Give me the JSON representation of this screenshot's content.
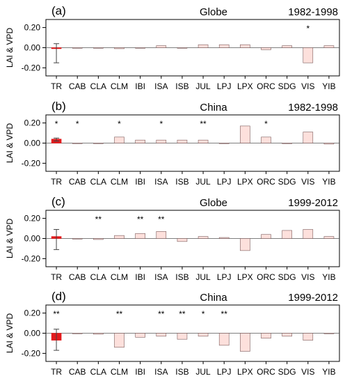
{
  "ylabel": "LAI & VPD",
  "colors": {
    "pale_bar_fill": "#fde0dc",
    "pale_bar_stroke": "#7a5a5a",
    "tr_bar_fill": "#e31a1c",
    "frame": "#000000"
  },
  "chart_data": [
    {
      "type": "bar",
      "label": "(a)",
      "region": "Globe",
      "period": "1982-1998",
      "categories": [
        "TR",
        "CAB",
        "CLA",
        "CLM",
        "IBI",
        "ISA",
        "ISB",
        "JUL",
        "LPJ",
        "LPX",
        "ORC",
        "SDG",
        "VIS",
        "YIB"
      ],
      "values": [
        -0.01,
        0.0,
        0.0,
        -0.01,
        0.0,
        0.02,
        0.0,
        0.03,
        0.03,
        0.03,
        -0.02,
        0.02,
        -0.15,
        0.02
      ],
      "tr_error": [
        -0.15,
        0.04
      ],
      "significance": [
        "",
        "",
        "",
        "",
        "",
        "",
        "",
        "",
        "",
        "",
        "",
        "",
        "*",
        ""
      ],
      "ylim": [
        -0.28,
        0.28
      ],
      "yticks": [
        -0.2,
        0.0,
        0.2
      ],
      "ytick_labels": [
        "-0.20",
        "0.00",
        "0.20"
      ]
    },
    {
      "type": "bar",
      "label": "(b)",
      "region": "China",
      "period": "1982-1998",
      "categories": [
        "TR",
        "CAB",
        "CLA",
        "CLM",
        "IBI",
        "ISA",
        "ISB",
        "JUL",
        "LPJ",
        "LPX",
        "ORC",
        "SDG",
        "VIS",
        "YIB"
      ],
      "values": [
        0.04,
        0.0,
        0.0,
        0.06,
        0.03,
        0.03,
        0.03,
        0.03,
        0.0,
        0.17,
        0.06,
        0.0,
        0.11,
        -0.01
      ],
      "tr_error": [
        0.02,
        0.05
      ],
      "significance": [
        "*",
        "*",
        "",
        "*",
        "",
        "*",
        "",
        "**",
        "",
        "",
        "*",
        "",
        "",
        ""
      ],
      "ylim": [
        -0.28,
        0.28
      ],
      "yticks": [
        -0.2,
        0.0,
        0.2
      ],
      "ytick_labels": [
        "-0.20",
        "0.00",
        "0.20"
      ]
    },
    {
      "type": "bar",
      "label": "(c)",
      "region": "Globe",
      "period": "1999-2012",
      "categories": [
        "TR",
        "CAB",
        "CLA",
        "CLM",
        "IBI",
        "ISA",
        "ISB",
        "JUL",
        "LPJ",
        "LPX",
        "ORC",
        "SDG",
        "VIS",
        "YIB"
      ],
      "values": [
        0.02,
        0.0,
        -0.01,
        0.03,
        0.05,
        0.07,
        -0.03,
        0.02,
        0.01,
        -0.12,
        0.04,
        0.08,
        0.09,
        0.02
      ],
      "tr_error": [
        -0.11,
        0.09
      ],
      "significance": [
        "",
        "",
        "**",
        "",
        "**",
        "**",
        "",
        "",
        "",
        "",
        "",
        "",
        "",
        ""
      ],
      "ylim": [
        -0.28,
        0.28
      ],
      "yticks": [
        -0.2,
        0.0,
        0.2
      ],
      "ytick_labels": [
        "-0.20",
        "0.00",
        "0.20"
      ]
    },
    {
      "type": "bar",
      "label": "(d)",
      "region": "China",
      "period": "1999-2012",
      "categories": [
        "TR",
        "CAB",
        "CLA",
        "CLM",
        "IBI",
        "ISA",
        "ISB",
        "JUL",
        "LPJ",
        "LPX",
        "ORC",
        "SDG",
        "VIS",
        "YIB"
      ],
      "values": [
        -0.07,
        0.0,
        -0.01,
        -0.14,
        -0.04,
        -0.03,
        -0.06,
        -0.03,
        -0.12,
        -0.18,
        -0.05,
        -0.03,
        -0.07,
        0.0
      ],
      "tr_error": [
        -0.17,
        0.04
      ],
      "significance": [
        "**",
        "",
        "",
        "**",
        "",
        "**",
        "**",
        "*",
        "**",
        "",
        "",
        "",
        "",
        ""
      ],
      "ylim": [
        -0.28,
        0.28
      ],
      "yticks": [
        -0.2,
        0.0,
        0.2
      ],
      "ytick_labels": [
        "-0.20",
        "0.00",
        "0.20"
      ]
    }
  ]
}
